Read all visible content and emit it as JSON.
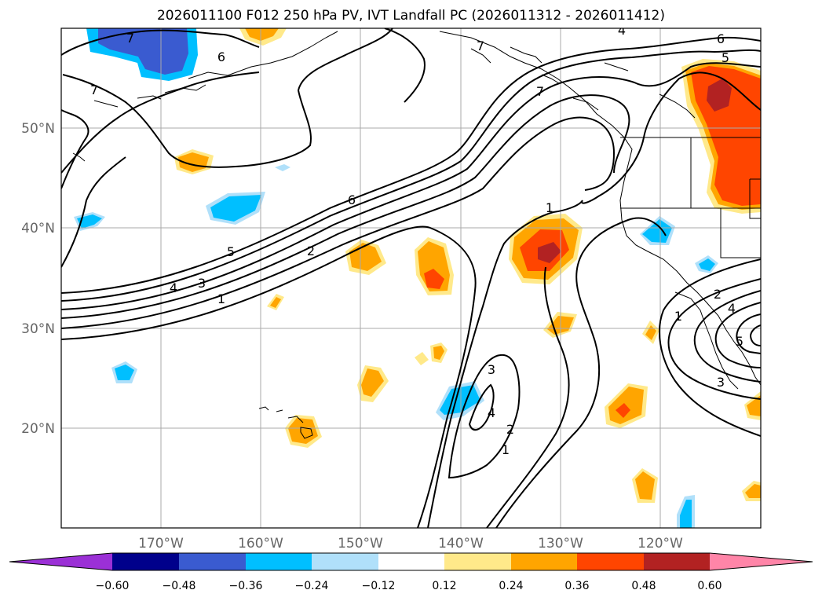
{
  "title": "2026011100 F012 250 hPa PV, IVT Landfall PC (2026011312 - 2026011412)",
  "map": {
    "lon_labels": [
      "170°W",
      "160°W",
      "150°W",
      "140°W",
      "130°W",
      "120°W"
    ],
    "lat_labels": [
      "50°N",
      "40°N",
      "30°N",
      "20°N"
    ]
  },
  "contour_labels": [
    {
      "text": "7"
    },
    {
      "text": "6"
    },
    {
      "text": "7"
    },
    {
      "text": "7"
    },
    {
      "text": "6"
    },
    {
      "text": "5"
    },
    {
      "text": "6"
    },
    {
      "text": "5"
    },
    {
      "text": "4"
    },
    {
      "text": "3"
    },
    {
      "text": "2"
    },
    {
      "text": "1"
    },
    {
      "text": "1"
    },
    {
      "text": "3"
    },
    {
      "text": "4"
    },
    {
      "text": "2"
    },
    {
      "text": "1"
    },
    {
      "text": "1"
    },
    {
      "text": "2"
    },
    {
      "text": "3"
    },
    {
      "text": "4"
    },
    {
      "text": "5"
    },
    {
      "text": "7"
    },
    {
      "text": "4"
    }
  ],
  "colorbar": {
    "ticks": [
      "−0.60",
      "−0.48",
      "−0.36",
      "−0.24",
      "−0.12",
      "0.12",
      "0.24",
      "0.36",
      "0.48",
      "0.60"
    ],
    "colors": {
      "under": "#9b30d6",
      "bins": [
        "#00008b",
        "#3a5bd0",
        "#00bfff",
        "#b0e0fa",
        "#ffffff",
        "#ffe98a",
        "#ffa500",
        "#ff4500",
        "#b22222"
      ],
      "over": "#ff85a8"
    }
  }
}
